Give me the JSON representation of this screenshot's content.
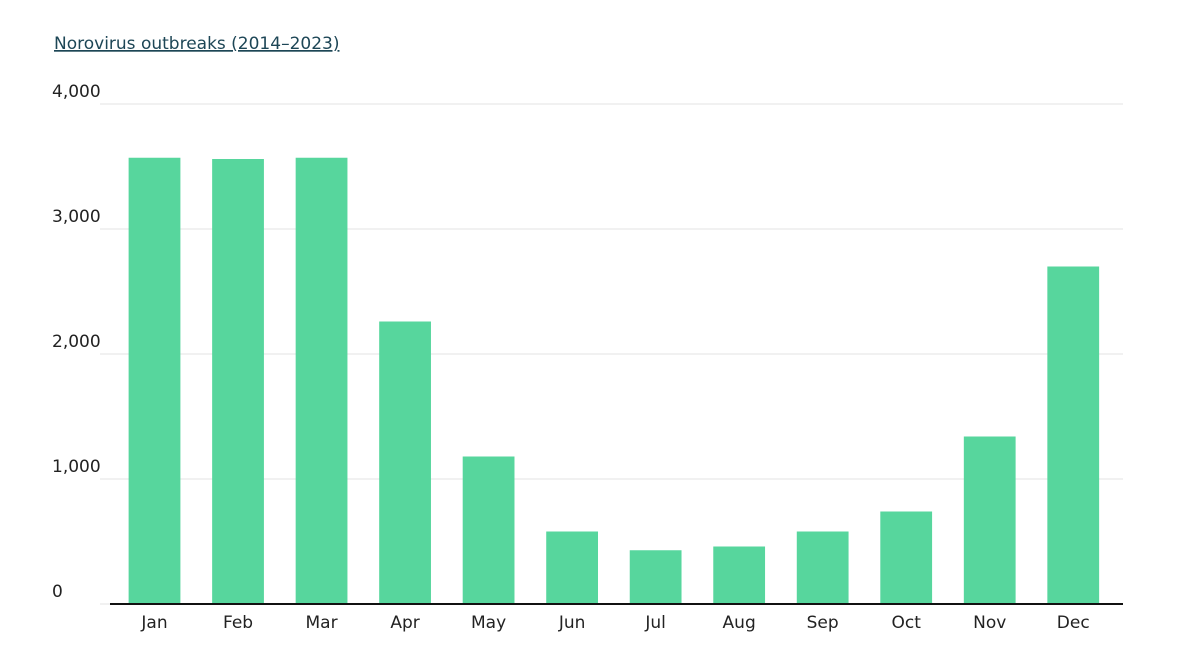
{
  "chart_data": {
    "type": "bar",
    "title": "Norovirus outbreaks (2014–2023)",
    "categories": [
      "Jan",
      "Feb",
      "Mar",
      "Apr",
      "May",
      "Jun",
      "Jul",
      "Aug",
      "Sep",
      "Oct",
      "Nov",
      "Dec"
    ],
    "values": [
      3570,
      3560,
      3570,
      2260,
      1180,
      580,
      430,
      460,
      580,
      740,
      1340,
      2700
    ],
    "color": "#57d69d",
    "ylim": [
      0,
      4000
    ],
    "yticks": [
      0,
      {
        "value": 1000,
        "label": "1,000"
      },
      {
        "value": 2000,
        "label": "2,000"
      },
      {
        "value": 3000,
        "label": "3,000"
      },
      {
        "value": 4000,
        "label": "4,000"
      }
    ],
    "grid": true
  }
}
